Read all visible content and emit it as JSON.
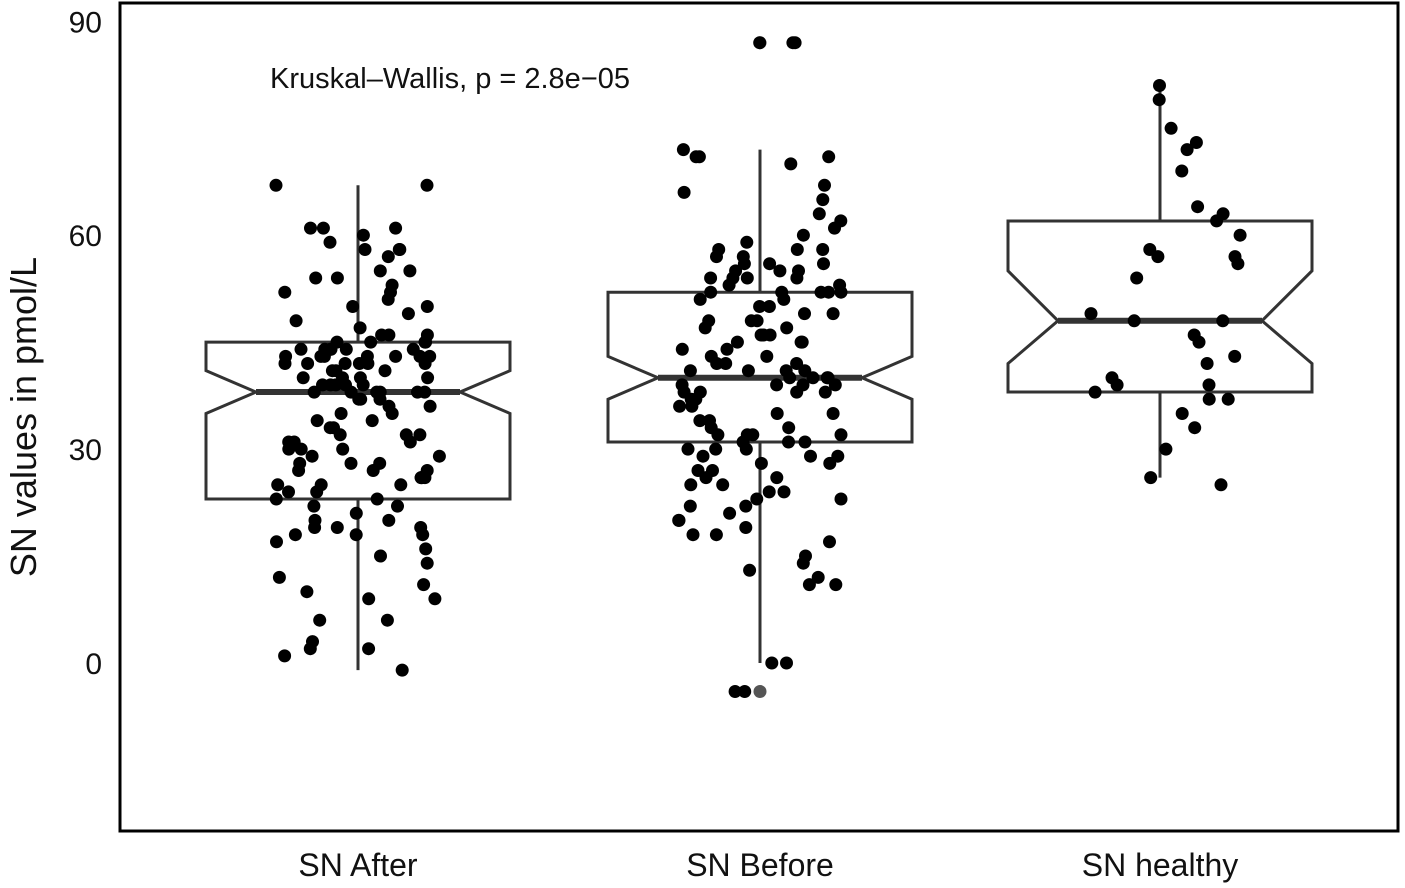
{
  "chart_data": {
    "type": "boxplot",
    "notched": true,
    "title": "",
    "xlabel": "",
    "ylabel": "SN values in pmol/L",
    "ylim": [
      -22,
      91
    ],
    "yticks": [
      0,
      30,
      60,
      90
    ],
    "ytick_labels": [
      "0",
      "30",
      "60",
      "90"
    ],
    "grid": false,
    "annotation": "Kruskal–Wallis, p = 2.8e−05",
    "categories": [
      "SN After",
      "SN Before",
      "SN healthy"
    ],
    "boxes": [
      {
        "name": "SN After",
        "q1": 23,
        "median": 38,
        "q3": 45,
        "whisker_low": -1,
        "whisker_high": 67,
        "notch_low": 35,
        "notch_high": 41,
        "outliers": []
      },
      {
        "name": "SN Before",
        "q1": 31,
        "median": 40,
        "q3": 52,
        "whisker_low": 0,
        "whisker_high": 72,
        "notch_low": 37,
        "notch_high": 43,
        "outliers": [
          -4,
          87
        ]
      },
      {
        "name": "SN healthy",
        "q1": 38,
        "median": 48,
        "q3": 62,
        "whisker_low": 26,
        "whisker_high": 81,
        "notch_low": 42,
        "notch_high": 55,
        "outliers": []
      }
    ],
    "points": [
      {
        "category": "SN After",
        "values": [
          67,
          67,
          61,
          61,
          61,
          60,
          59,
          58,
          58,
          58,
          57,
          55,
          55,
          54,
          54,
          53,
          52,
          52,
          51,
          50,
          50,
          49,
          48,
          47,
          46,
          46,
          46,
          45,
          45,
          45,
          45,
          44,
          44,
          44,
          44,
          44,
          44,
          43,
          43,
          43,
          43,
          43,
          43,
          43,
          42,
          42,
          42,
          42,
          42,
          42,
          41,
          41,
          41,
          40,
          40,
          40,
          40,
          39,
          39,
          39,
          39,
          39,
          38,
          38,
          38,
          38,
          38,
          38,
          37,
          37,
          37,
          36,
          36,
          35,
          35,
          34,
          34,
          33,
          33,
          32,
          32,
          32,
          31,
          31,
          31,
          30,
          30,
          30,
          29,
          29,
          28,
          28,
          28,
          27,
          27,
          27,
          26,
          26,
          26,
          26,
          25,
          25,
          25,
          24,
          24,
          23,
          23,
          22,
          22,
          21,
          20,
          20,
          19,
          19,
          19,
          18,
          18,
          18,
          17,
          16,
          15,
          14,
          12,
          11,
          10,
          9,
          9,
          6,
          6,
          3,
          2,
          2,
          1,
          -1
        ]
      },
      {
        "category": "SN Before",
        "values": [
          87,
          87,
          87,
          72,
          71,
          71,
          71,
          70,
          67,
          66,
          65,
          63,
          62,
          61,
          60,
          59,
          58,
          58,
          58,
          57,
          57,
          56,
          56,
          56,
          55,
          55,
          55,
          54,
          54,
          54,
          54,
          53,
          53,
          52,
          52,
          52,
          52,
          52,
          51,
          51,
          50,
          50,
          49,
          49,
          48,
          48,
          48,
          47,
          47,
          46,
          46,
          46,
          45,
          45,
          45,
          44,
          44,
          43,
          43,
          42,
          42,
          42,
          41,
          41,
          41,
          41,
          40,
          40,
          40,
          40,
          39,
          39,
          39,
          39,
          38,
          38,
          38,
          38,
          37,
          37,
          36,
          36,
          35,
          35,
          34,
          34,
          33,
          33,
          32,
          32,
          32,
          32,
          31,
          31,
          31,
          30,
          30,
          30,
          29,
          29,
          29,
          28,
          28,
          27,
          27,
          26,
          26,
          25,
          25,
          24,
          24,
          23,
          23,
          22,
          22,
          21,
          20,
          20,
          19,
          18,
          18,
          17,
          15,
          14,
          13,
          12,
          11,
          11,
          0,
          0,
          -4,
          -4
        ]
      },
      {
        "category": "SN healthy",
        "values": [
          81,
          79,
          75,
          73,
          72,
          69,
          64,
          63,
          62,
          60,
          58,
          57,
          57,
          56,
          54,
          49,
          48,
          48,
          46,
          45,
          43,
          42,
          40,
          39,
          39,
          38,
          37,
          37,
          35,
          33,
          30,
          26,
          25
        ]
      }
    ]
  }
}
